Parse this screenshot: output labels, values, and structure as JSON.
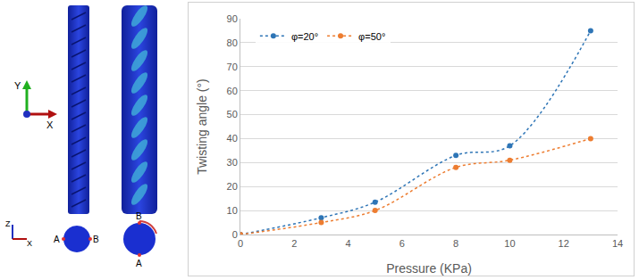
{
  "chart_data": {
    "type": "line",
    "x_label": "Pressure (KPa)",
    "y_label": "Twisting angle (°)",
    "series": [
      {
        "name": "φ=20°",
        "color": "#2e75b6",
        "line_style": "dot",
        "marker": "circle",
        "x": [
          0,
          3,
          5,
          8,
          10,
          13
        ],
        "values": [
          0,
          7,
          13.5,
          33,
          37,
          85
        ]
      },
      {
        "name": "φ=50°",
        "color": "#ed7d31",
        "line_style": "dot",
        "marker": "circle",
        "x": [
          0,
          3,
          5,
          8,
          10,
          13
        ],
        "values": [
          0,
          5,
          10,
          28,
          31,
          40
        ]
      }
    ],
    "xlim": [
      0,
      14
    ],
    "xticks": [
      0,
      2,
      4,
      6,
      8,
      10,
      12,
      14
    ],
    "ylim": [
      0,
      90
    ],
    "yticks": [
      0,
      10,
      20,
      30,
      40,
      50,
      60,
      70,
      80,
      90
    ],
    "grid": true,
    "legend": "top-left"
  },
  "panel": {
    "top_axes": {
      "vertical": "Y",
      "horizontal": "X"
    },
    "bottom_axes": {
      "vertical": "Z",
      "horizontal": "X"
    },
    "undeformed_points": {
      "left": "A",
      "right": "B"
    },
    "deformed_points": {
      "top": "B",
      "bottom": "A"
    }
  }
}
